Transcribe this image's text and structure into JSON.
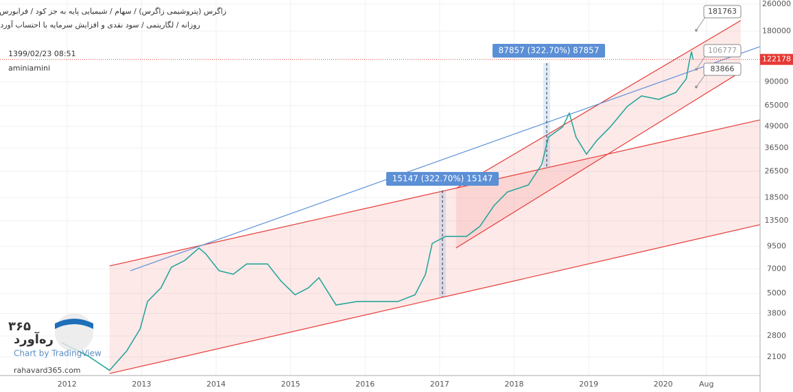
{
  "chart_data": {
    "type": "line",
    "title": "زاگرس (پتروشیمی زاگرس) / سهام / شیمیایی پایه به جز کود / فرابورس",
    "subtitle": "روزانه / لگاریتمی / سود نقدی و افزایش سرمایه با احتساب آورده",
    "timestamp": "1399/02/23 08:51",
    "author": "aminiamini",
    "watermark": "rahavard365.com",
    "logo_number": "۳۶۵",
    "logo_name": "ره‌آورد",
    "tv_credit": "Chart by TradingView",
    "log_scale": true,
    "xlim": [
      2011.1,
      2021.3
    ],
    "xticks": [
      2012,
      2013,
      2014,
      2015,
      2016,
      2017,
      2018,
      2019,
      2020,
      {
        "value": 2020.58,
        "label": "Aug"
      }
    ],
    "ylim": [
      1630,
      275000
    ],
    "yticks": [
      2100,
      2800,
      3800,
      5000,
      7000,
      9500,
      13500,
      18500,
      26500,
      36500,
      49000,
      65000,
      90000,
      180000,
      260000
    ],
    "x": [
      2011.93,
      2012.29,
      2012.57,
      2012.8,
      2012.98,
      2013.08,
      2013.26,
      2013.4,
      2013.58,
      2013.77,
      2013.86,
      2014.04,
      2014.23,
      2014.41,
      2014.69,
      2014.87,
      2015.06,
      2015.24,
      2015.38,
      2015.61,
      2015.89,
      2016.16,
      2016.44,
      2016.67,
      2016.81,
      2016.9,
      2017.08,
      2017.36,
      2017.54,
      2017.73,
      2017.91,
      2018.19,
      2018.37,
      2018.46,
      2018.65,
      2018.74,
      2018.83,
      2018.97,
      2019.11,
      2019.29,
      2019.52,
      2019.71,
      2019.94,
      2020.17,
      2020.31,
      2020.35,
      2020.38,
      2020.4
    ],
    "series": [
      {
        "name": "زاگرس",
        "color": "#26a69a",
        "values": [
          2550,
          2120,
          1750,
          2280,
          3080,
          4480,
          5400,
          7150,
          7850,
          9300,
          8600,
          6820,
          6500,
          7480,
          7480,
          5930,
          4910,
          5400,
          6200,
          4270,
          4480,
          4480,
          4480,
          4910,
          6500,
          9900,
          10900,
          10900,
          12500,
          16600,
          20000,
          22000,
          29100,
          42300,
          48600,
          58600,
          42300,
          33500,
          40400,
          48600,
          64400,
          74200,
          70800,
          77800,
          93800,
          118600,
          136000,
          122178
        ]
      }
    ],
    "drawings": [
      {
        "color": "#e53935",
        "x": [
          2012.57,
          2021.3
        ],
        "values": [
          7280,
          53500
        ]
      },
      {
        "color": "#e53935",
        "x": [
          2012.57,
          2021.3
        ],
        "values": [
          1675,
          12800
        ]
      },
      {
        "color": "#e53935",
        "x": [
          2017.22,
          2021.04
        ],
        "values": [
          21000,
          207600
        ]
      },
      {
        "color": "#e53935",
        "x": [
          2017.22,
          2021.04
        ],
        "values": [
          9300,
          103000
        ]
      },
      {
        "color": "#5b8fd6",
        "x": [
          2012.85,
          2021.3
        ],
        "values": [
          6820,
          145600
        ]
      }
    ],
    "price_labels": [
      181763,
      106777,
      83866
    ],
    "last_price": 122178,
    "measurements": [
      "87857 (322.70%) 87857",
      "15147 (322.70%) 15147"
    ]
  }
}
